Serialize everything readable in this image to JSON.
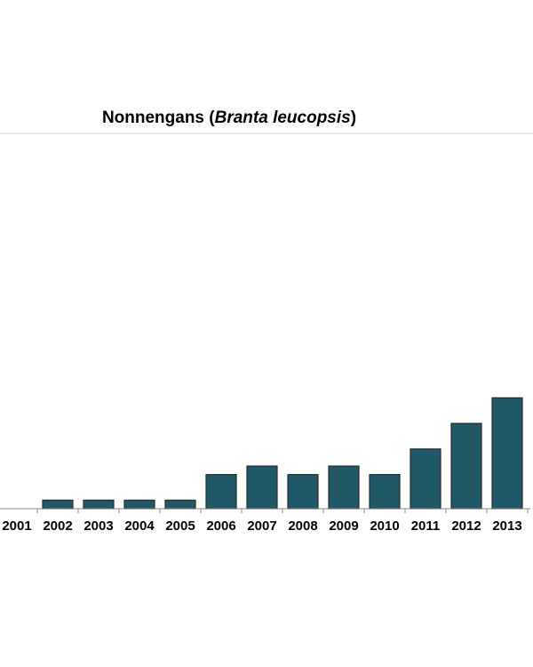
{
  "chart_data": {
    "type": "bar",
    "title": [
      {
        "text": "Nonnengans ("
      },
      {
        "text": "Branta leucopsis",
        "italic": true
      },
      {
        "text": ")"
      }
    ],
    "categories": [
      "2001",
      "2002",
      "2003",
      "2004",
      "2005",
      "2006",
      "2007",
      "2008",
      "2009",
      "2010",
      "2011",
      "2012",
      "2013"
    ],
    "values": [
      0,
      1,
      1,
      1,
      1,
      4,
      5,
      4,
      5,
      4,
      7,
      10,
      13
    ],
    "color": "#215868",
    "ylim": [
      0,
      44
    ]
  }
}
